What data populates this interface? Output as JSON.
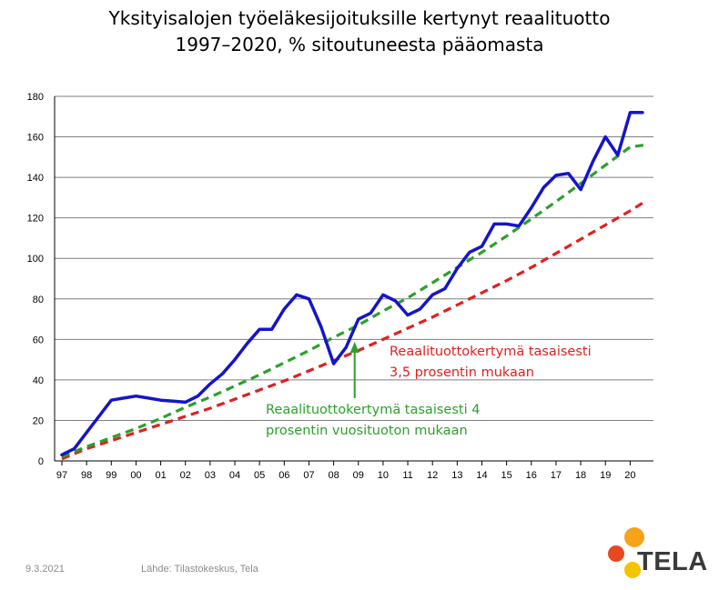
{
  "title_lines": [
    "Yksityisalojen työeläkesijoituksille kertynyt reaalituotto",
    "1997–2020, % sitoutuneesta pääomasta"
  ],
  "footer": {
    "date": "9.3.2021",
    "source": "Lähde: Tilastokeskus, Tela"
  },
  "logo": {
    "text": "TELA",
    "colors": [
      "#f7a21b",
      "#e8481e",
      "#f4c400"
    ]
  },
  "chart_data": {
    "type": "line",
    "ylim": [
      0,
      180
    ],
    "yticks": [
      0,
      20,
      40,
      60,
      80,
      100,
      120,
      140,
      160,
      180
    ],
    "xlim": [
      1997,
      2021
    ],
    "xtick_labels": [
      "97",
      "98",
      "99",
      "00",
      "01",
      "02",
      "03",
      "04",
      "05",
      "06",
      "07",
      "08",
      "09",
      "10",
      "11",
      "12",
      "13",
      "14",
      "15",
      "16",
      "17",
      "18",
      "19",
      "20"
    ],
    "grid": true,
    "series": [
      {
        "color": "#1515c8",
        "style": "solid",
        "x": [
          1997.0,
          1997.5,
          1998.0,
          1998.5,
          1999.0,
          1999.5,
          2000.0,
          2000.5,
          2001.0,
          2001.5,
          2002.0,
          2002.5,
          2003.0,
          2003.5,
          2004.0,
          2004.5,
          2005.0,
          2005.5,
          2006.0,
          2006.5,
          2007.0,
          2007.5,
          2008.0,
          2008.5,
          2009.0,
          2009.5,
          2010.0,
          2010.5,
          2011.0,
          2011.5,
          2012.0,
          2012.5,
          2013.0,
          2013.5,
          2014.0,
          2014.5,
          2015.0,
          2015.5,
          2016.0,
          2016.5,
          2017.0,
          2017.5,
          2018.0,
          2018.5,
          2019.0,
          2019.5,
          2020.0,
          2020.5
        ],
        "values": [
          3,
          6,
          14,
          22,
          30,
          31,
          32,
          31,
          30,
          29.5,
          29,
          32,
          38,
          43,
          50,
          58,
          65,
          65,
          75,
          82,
          80,
          66,
          48,
          56,
          70,
          73,
          82,
          79,
          72,
          75,
          82,
          85,
          95,
          103,
          106,
          117,
          117,
          116,
          125,
          135,
          141,
          142,
          134,
          148,
          160,
          151,
          172,
          172
        ]
      },
      {
        "color": "#2ca02c",
        "style": "dashed",
        "x": [
          1997,
          1998,
          1999,
          2000,
          2001,
          2002,
          2003,
          2004,
          2005,
          2006,
          2007,
          2008,
          2009,
          2010,
          2011,
          2012,
          2013,
          2014,
          2015,
          2016,
          2017,
          2018,
          2019,
          2020,
          2020.6
        ],
        "values": [
          2,
          7,
          11.5,
          16,
          21,
          26.5,
          31.5,
          37,
          42.5,
          48.5,
          54.5,
          61,
          67,
          74,
          80.5,
          88,
          95.5,
          103,
          111,
          119.5,
          128,
          137,
          146,
          155,
          156
        ]
      },
      {
        "color": "#e02020",
        "style": "dashed",
        "x": [
          1997,
          1998,
          1999,
          2000,
          2001,
          2002,
          2003,
          2004,
          2005,
          2006,
          2007,
          2008,
          2009,
          2010,
          2011,
          2012,
          2013,
          2014,
          2015,
          2016,
          2017,
          2018,
          2019,
          2020,
          2020.6
        ],
        "values": [
          1,
          6,
          10,
          14,
          18,
          22,
          26,
          30.5,
          35,
          39.5,
          44.5,
          49.5,
          54.5,
          60,
          65.5,
          71,
          77,
          83,
          89,
          95.5,
          102.5,
          109.5,
          116.5,
          123.5,
          128
        ]
      }
    ],
    "annotations": [
      {
        "text": "Reaalituottokertymä tasaisesti",
        "color": "#e02020"
      },
      {
        "text": "3,5 prosentin mukaan",
        "color": "#e02020"
      },
      {
        "text": "Reaalituottokertymä tasaisesti 4",
        "color": "#2ca02c"
      },
      {
        "text": "prosentin vuosituoton mukaan",
        "color": "#2ca02c"
      }
    ]
  }
}
